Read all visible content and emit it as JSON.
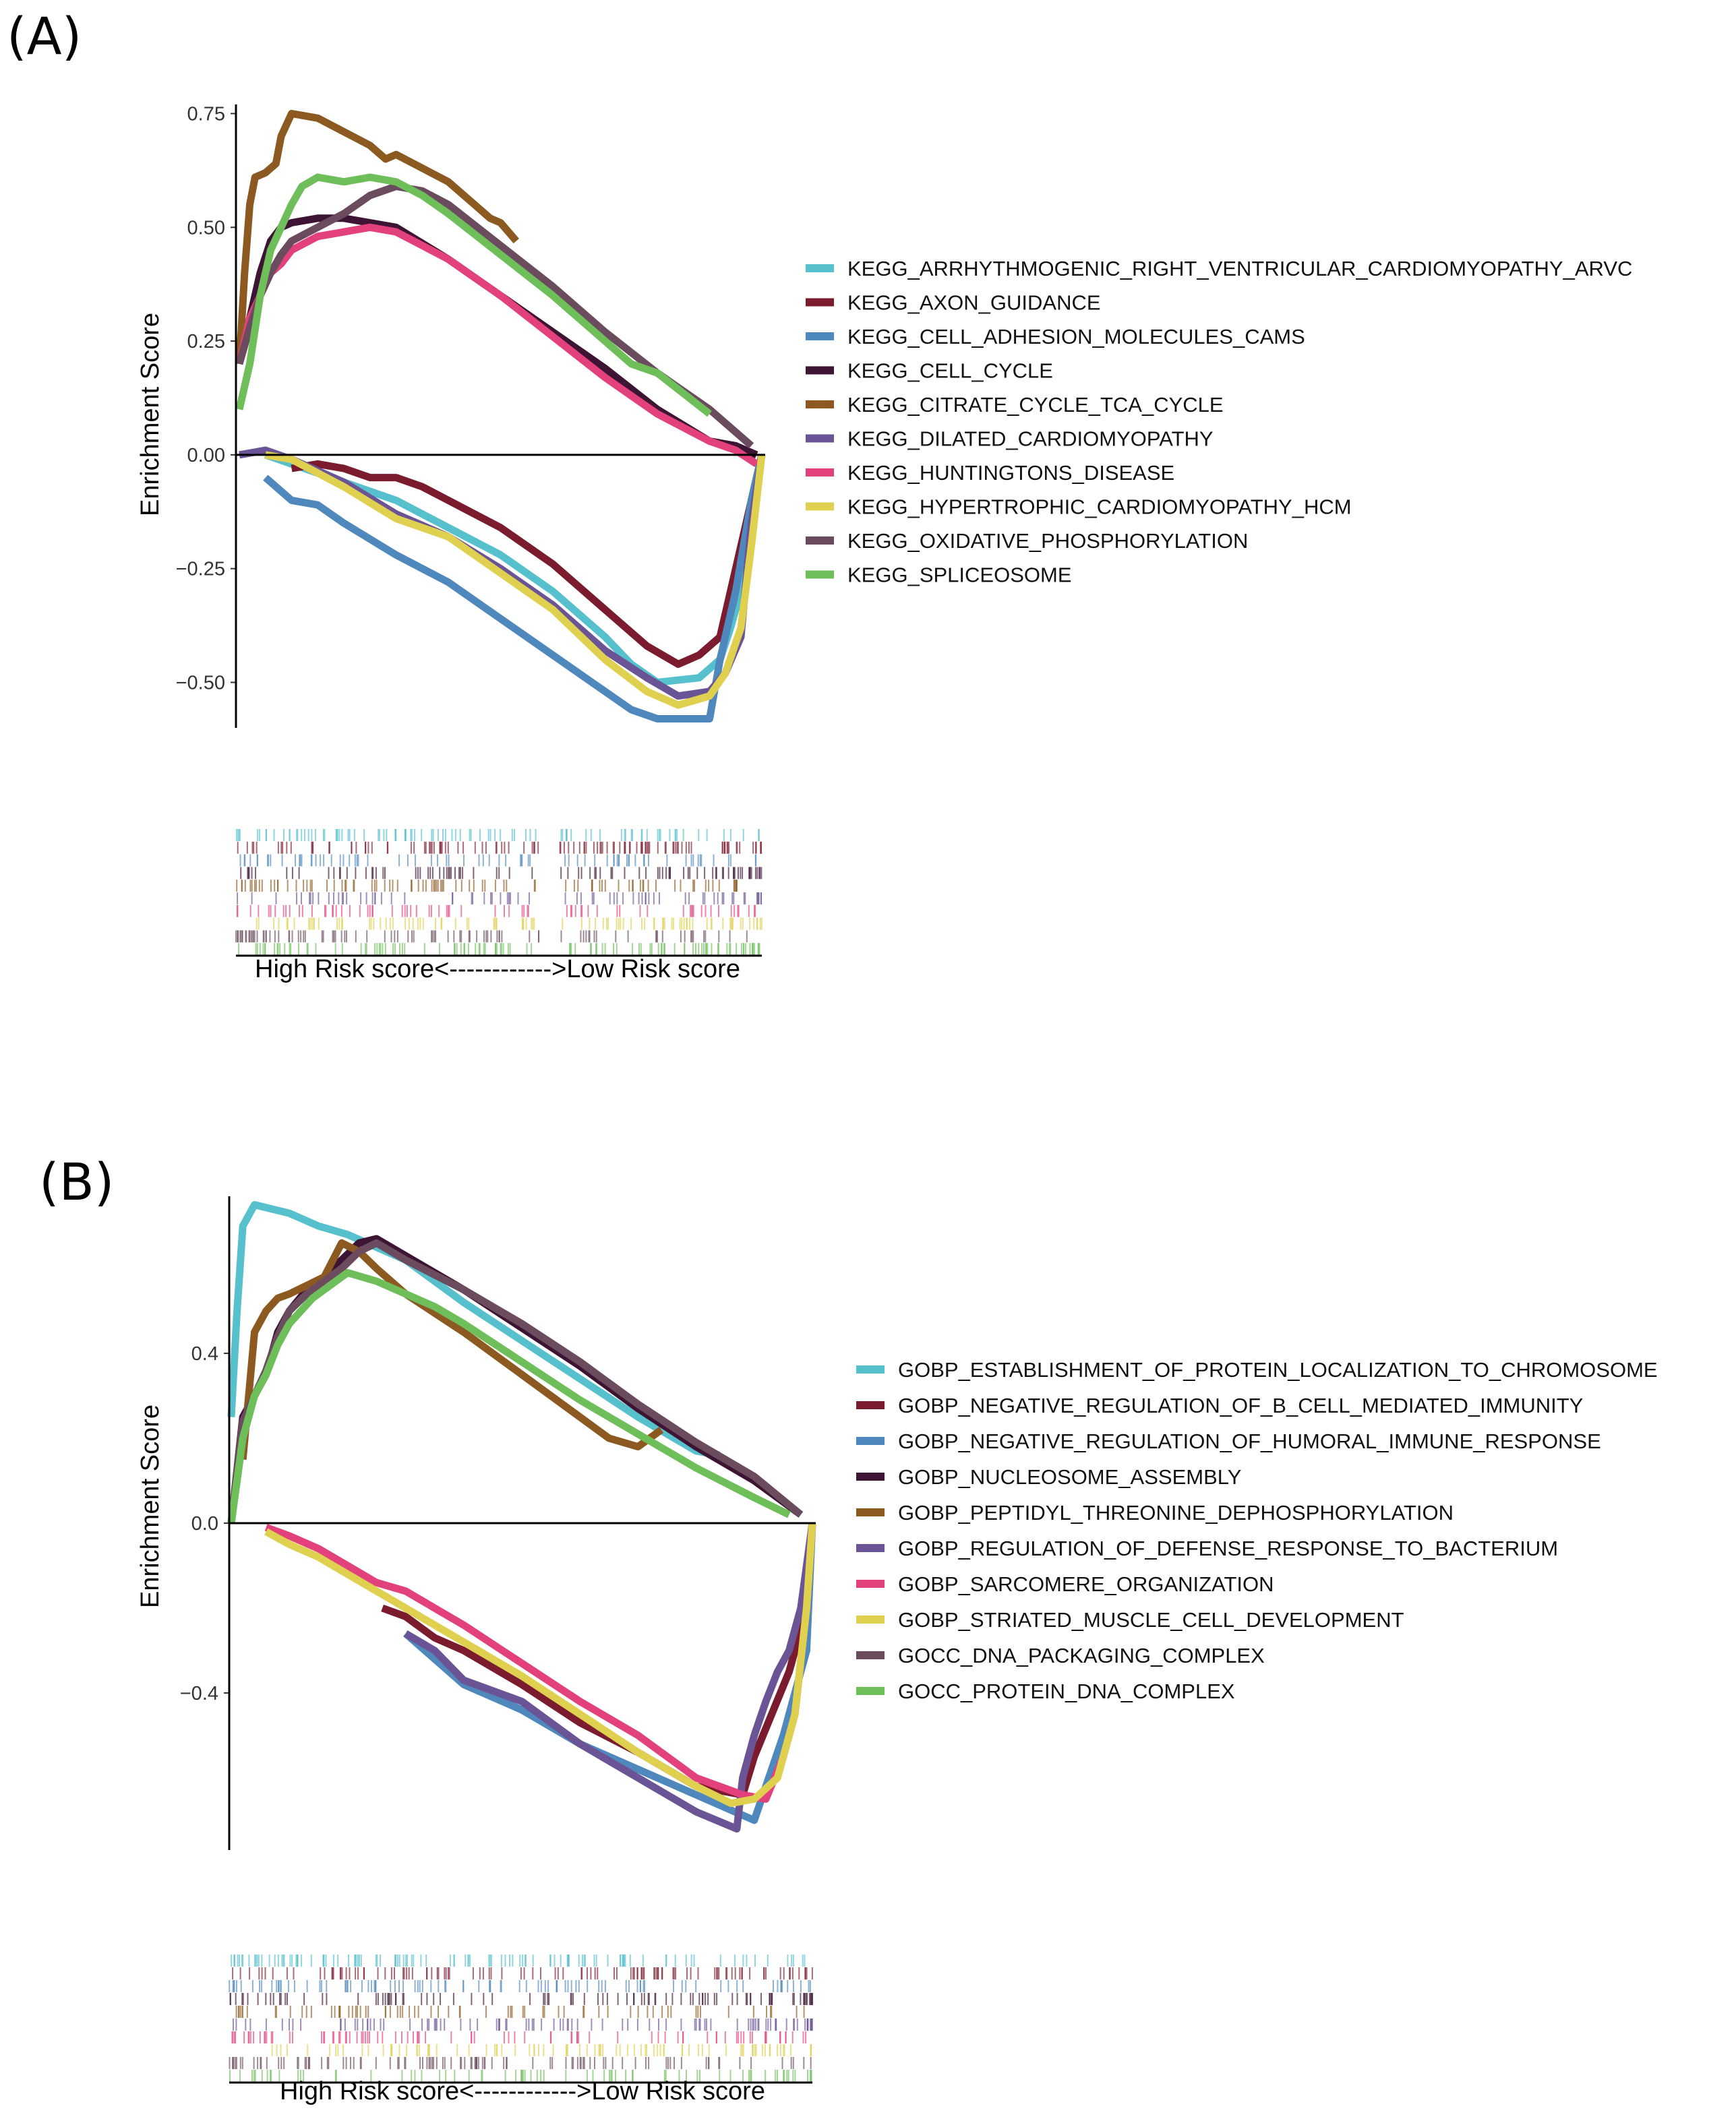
{
  "chart_data": [
    {
      "type": "line",
      "panel_label": "(A)",
      "ylabel": "Enrichment Score",
      "xlabel": "High Risk score<------------>Low Risk score",
      "x_range": [
        0,
        1
      ],
      "ylim": [
        -0.6,
        0.77
      ],
      "yticks": [
        -0.5,
        -0.25,
        0.0,
        0.25,
        0.5,
        0.75
      ],
      "ytick_labels": [
        "−0.50",
        "−0.25",
        "0.00",
        "0.25",
        "0.50",
        "0.75"
      ],
      "grid": false,
      "legend_position": "right",
      "series": [
        {
          "name": "KEGG_ARRHYTHMOGENIC_RIGHT_VENTRICULAR_CARDIOMYOPATHY_ARVC",
          "color": "#56C0CC",
          "x": [
            0.05,
            0.1,
            0.2,
            0.3,
            0.4,
            0.5,
            0.6,
            0.7,
            0.75,
            0.8,
            0.88,
            0.92,
            0.94,
            0.96,
            0.98,
            1.0
          ],
          "y": [
            0.0,
            -0.02,
            -0.06,
            -0.1,
            -0.16,
            -0.22,
            -0.3,
            -0.4,
            -0.46,
            -0.5,
            -0.49,
            -0.45,
            -0.38,
            -0.3,
            -0.1,
            0.0
          ]
        },
        {
          "name": "KEGG_AXON_GUIDANCE",
          "color": "#7B1B2E",
          "x": [
            0.1,
            0.15,
            0.2,
            0.25,
            0.3,
            0.35,
            0.4,
            0.5,
            0.6,
            0.7,
            0.78,
            0.84,
            0.88,
            0.92,
            0.95,
            0.97,
            1.0
          ],
          "y": [
            -0.03,
            -0.02,
            -0.03,
            -0.05,
            -0.05,
            -0.07,
            -0.1,
            -0.16,
            -0.24,
            -0.34,
            -0.42,
            -0.46,
            -0.44,
            -0.4,
            -0.25,
            -0.15,
            0.0
          ]
        },
        {
          "name": "KEGG_CELL_ADHESION_MOLECULES_CAMS",
          "color": "#4E88BD",
          "x": [
            0.05,
            0.1,
            0.15,
            0.2,
            0.3,
            0.4,
            0.5,
            0.6,
            0.7,
            0.75,
            0.8,
            0.86,
            0.9,
            0.92,
            0.95,
            0.98,
            1.0
          ],
          "y": [
            -0.05,
            -0.1,
            -0.11,
            -0.15,
            -0.22,
            -0.28,
            -0.36,
            -0.44,
            -0.52,
            -0.56,
            -0.58,
            -0.58,
            -0.58,
            -0.45,
            -0.3,
            -0.1,
            0.0
          ]
        },
        {
          "name": "KEGG_CELL_CYCLE",
          "color": "#3D1433",
          "x": [
            0.0,
            0.02,
            0.04,
            0.06,
            0.08,
            0.1,
            0.15,
            0.2,
            0.3,
            0.4,
            0.5,
            0.6,
            0.7,
            0.8,
            0.9,
            0.95,
            0.99
          ],
          "y": [
            0.2,
            0.3,
            0.4,
            0.47,
            0.5,
            0.51,
            0.52,
            0.52,
            0.5,
            0.43,
            0.35,
            0.27,
            0.19,
            0.1,
            0.03,
            0.02,
            0.0
          ]
        },
        {
          "name": "KEGG_CITRATE_CYCLE_TCA_CYCLE",
          "color": "#8C5A21",
          "x": [
            0.0,
            0.01,
            0.02,
            0.03,
            0.05,
            0.07,
            0.08,
            0.1,
            0.15,
            0.2,
            0.25,
            0.28,
            0.3,
            0.35,
            0.4,
            0.45,
            0.48,
            0.5,
            0.53
          ],
          "y": [
            0.2,
            0.4,
            0.55,
            0.61,
            0.62,
            0.64,
            0.7,
            0.75,
            0.74,
            0.71,
            0.68,
            0.65,
            0.66,
            0.63,
            0.6,
            0.55,
            0.52,
            0.51,
            0.47
          ]
        },
        {
          "name": "KEGG_DILATED_CARDIOMYOPATHY",
          "color": "#6B5496",
          "x": [
            0.0,
            0.05,
            0.1,
            0.2,
            0.3,
            0.4,
            0.5,
            0.6,
            0.7,
            0.78,
            0.84,
            0.9,
            0.93,
            0.96,
            0.98,
            1.0
          ],
          "y": [
            0.0,
            0.01,
            -0.01,
            -0.06,
            -0.13,
            -0.18,
            -0.25,
            -0.33,
            -0.43,
            -0.49,
            -0.53,
            -0.52,
            -0.48,
            -0.4,
            -0.15,
            0.0
          ]
        },
        {
          "name": "KEGG_HUNTINGTONS_DISEASE",
          "color": "#E2417C",
          "x": [
            0.0,
            0.02,
            0.04,
            0.06,
            0.08,
            0.1,
            0.15,
            0.2,
            0.25,
            0.3,
            0.35,
            0.4,
            0.5,
            0.6,
            0.7,
            0.8,
            0.9,
            0.95,
            0.99
          ],
          "y": [
            0.2,
            0.3,
            0.35,
            0.4,
            0.42,
            0.45,
            0.48,
            0.49,
            0.5,
            0.49,
            0.46,
            0.43,
            0.35,
            0.26,
            0.17,
            0.09,
            0.03,
            0.01,
            -0.02
          ]
        },
        {
          "name": "KEGG_HYPERTROPHIC_CARDIOMYOPATHY_HCM",
          "color": "#DFD050",
          "x": [
            0.05,
            0.1,
            0.15,
            0.2,
            0.3,
            0.4,
            0.5,
            0.6,
            0.7,
            0.78,
            0.84,
            0.9,
            0.93,
            0.96,
            0.98,
            1.0
          ],
          "y": [
            0.0,
            -0.01,
            -0.04,
            -0.07,
            -0.14,
            -0.18,
            -0.26,
            -0.34,
            -0.45,
            -0.52,
            -0.55,
            -0.53,
            -0.48,
            -0.38,
            -0.2,
            0.0
          ]
        },
        {
          "name": "KEGG_OXIDATIVE_PHOSPHORYLATION",
          "color": "#6A4C5E",
          "x": [
            0.0,
            0.02,
            0.04,
            0.06,
            0.08,
            0.1,
            0.15,
            0.2,
            0.25,
            0.3,
            0.35,
            0.4,
            0.5,
            0.6,
            0.7,
            0.8,
            0.9,
            0.98
          ],
          "y": [
            0.2,
            0.28,
            0.35,
            0.4,
            0.44,
            0.47,
            0.5,
            0.53,
            0.57,
            0.59,
            0.58,
            0.55,
            0.46,
            0.37,
            0.27,
            0.18,
            0.1,
            0.02
          ]
        },
        {
          "name": "KEGG_SPLICEOSOME",
          "color": "#6EBE5A",
          "x": [
            0.0,
            0.02,
            0.04,
            0.06,
            0.08,
            0.1,
            0.12,
            0.15,
            0.2,
            0.25,
            0.3,
            0.35,
            0.4,
            0.5,
            0.6,
            0.7,
            0.75,
            0.8,
            0.9
          ],
          "y": [
            0.1,
            0.2,
            0.35,
            0.45,
            0.5,
            0.55,
            0.59,
            0.61,
            0.6,
            0.61,
            0.6,
            0.57,
            0.53,
            0.44,
            0.35,
            0.25,
            0.2,
            0.18,
            0.09
          ]
        }
      ]
    },
    {
      "type": "line",
      "panel_label": "(B)",
      "ylabel": "Enrichment Score",
      "xlabel": "High Risk score<------------>Low Risk score",
      "x_range": [
        0,
        1
      ],
      "ylim": [
        -0.77,
        0.77
      ],
      "yticks": [
        -0.4,
        0.0,
        0.4
      ],
      "ytick_labels": [
        "−0.4",
        "0.0",
        "0.4"
      ],
      "grid": false,
      "legend_position": "right",
      "series": [
        {
          "name": "GOBP_ESTABLISHMENT_OF_PROTEIN_LOCALIZATION_TO_CHROMOSOME",
          "color": "#56C0CC",
          "x": [
            0.0,
            0.01,
            0.02,
            0.04,
            0.1,
            0.15,
            0.2,
            0.3,
            0.4,
            0.5,
            0.6,
            0.7,
            0.8,
            0.84
          ],
          "y": [
            0.25,
            0.5,
            0.7,
            0.75,
            0.73,
            0.7,
            0.68,
            0.62,
            0.52,
            0.43,
            0.34,
            0.25,
            0.17,
            0.16
          ]
        },
        {
          "name": "GOBP_NEGATIVE_REGULATION_OF_B_CELL_MEDIATED_IMMUNITY",
          "color": "#7B1B2E",
          "x": [
            0.26,
            0.3,
            0.35,
            0.4,
            0.5,
            0.6,
            0.7,
            0.8,
            0.88,
            0.9,
            0.93,
            0.96,
            0.98,
            1.0
          ],
          "y": [
            -0.2,
            -0.22,
            -0.27,
            -0.3,
            -0.38,
            -0.47,
            -0.54,
            -0.62,
            -0.64,
            -0.55,
            -0.45,
            -0.35,
            -0.25,
            0.0
          ]
        },
        {
          "name": "GOBP_NEGATIVE_REGULATION_OF_HUMORAL_IMMUNE_RESPONSE",
          "color": "#4E88BD",
          "x": [
            0.3,
            0.4,
            0.5,
            0.6,
            0.7,
            0.8,
            0.85,
            0.9,
            0.92,
            0.95,
            0.97,
            0.99,
            1.0
          ],
          "y": [
            -0.26,
            -0.38,
            -0.44,
            -0.52,
            -0.58,
            -0.64,
            -0.67,
            -0.7,
            -0.62,
            -0.5,
            -0.4,
            -0.3,
            0.0
          ]
        },
        {
          "name": "GOBP_NUCLEOSOME_ASSEMBLY",
          "color": "#3D1433",
          "x": [
            0.0,
            0.02,
            0.04,
            0.06,
            0.08,
            0.1,
            0.13,
            0.16,
            0.19,
            0.22,
            0.25,
            0.3,
            0.4,
            0.5,
            0.6,
            0.7,
            0.8,
            0.9,
            0.98
          ],
          "y": [
            0.0,
            0.25,
            0.3,
            0.35,
            0.45,
            0.5,
            0.55,
            0.58,
            0.62,
            0.66,
            0.67,
            0.63,
            0.55,
            0.46,
            0.37,
            0.27,
            0.18,
            0.1,
            0.02
          ]
        },
        {
          "name": "GOBP_PEPTIDYL_THREONINE_DEPHOSPHORYLATION",
          "color": "#8C5A21",
          "x": [
            0.02,
            0.03,
            0.04,
            0.06,
            0.08,
            0.1,
            0.13,
            0.16,
            0.19,
            0.22,
            0.25,
            0.3,
            0.4,
            0.5,
            0.6,
            0.65,
            0.7,
            0.73,
            0.74
          ],
          "y": [
            0.15,
            0.3,
            0.45,
            0.5,
            0.53,
            0.54,
            0.56,
            0.58,
            0.66,
            0.64,
            0.6,
            0.54,
            0.45,
            0.35,
            0.25,
            0.2,
            0.18,
            0.21,
            0.22
          ]
        },
        {
          "name": "GOBP_REGULATION_OF_DEFENSE_RESPONSE_TO_BACTERIUM",
          "color": "#6B5496",
          "x": [
            0.3,
            0.35,
            0.4,
            0.5,
            0.6,
            0.7,
            0.8,
            0.87,
            0.88,
            0.9,
            0.92,
            0.94,
            0.96,
            0.98,
            1.0
          ],
          "y": [
            -0.26,
            -0.3,
            -0.37,
            -0.42,
            -0.52,
            -0.6,
            -0.68,
            -0.72,
            -0.6,
            -0.5,
            -0.42,
            -0.35,
            -0.3,
            -0.2,
            0.0
          ]
        },
        {
          "name": "GOBP_SARCOMERE_ORGANIZATION",
          "color": "#E2417C",
          "x": [
            0.06,
            0.1,
            0.15,
            0.2,
            0.25,
            0.3,
            0.4,
            0.5,
            0.6,
            0.7,
            0.8,
            0.88,
            0.92,
            0.95,
            0.97,
            0.99,
            1.0
          ],
          "y": [
            -0.01,
            -0.03,
            -0.06,
            -0.1,
            -0.14,
            -0.16,
            -0.24,
            -0.33,
            -0.42,
            -0.5,
            -0.6,
            -0.64,
            -0.65,
            -0.55,
            -0.45,
            -0.2,
            0.0
          ]
        },
        {
          "name": "GOBP_STRIATED_MUSCLE_CELL_DEVELOPMENT",
          "color": "#DFD050",
          "x": [
            0.06,
            0.1,
            0.15,
            0.2,
            0.25,
            0.3,
            0.4,
            0.5,
            0.6,
            0.7,
            0.8,
            0.86,
            0.9,
            0.94,
            0.97,
            0.99,
            1.0
          ],
          "y": [
            -0.02,
            -0.05,
            -0.08,
            -0.12,
            -0.16,
            -0.2,
            -0.28,
            -0.36,
            -0.45,
            -0.54,
            -0.62,
            -0.66,
            -0.65,
            -0.6,
            -0.45,
            -0.2,
            0.0
          ]
        },
        {
          "name": "GOCC_DNA_PACKAGING_COMPLEX",
          "color": "#6A4C5E",
          "x": [
            0.0,
            0.02,
            0.04,
            0.06,
            0.08,
            0.1,
            0.13,
            0.16,
            0.19,
            0.22,
            0.25,
            0.3,
            0.4,
            0.5,
            0.6,
            0.7,
            0.8,
            0.9,
            0.98
          ],
          "y": [
            0.0,
            0.24,
            0.3,
            0.36,
            0.44,
            0.5,
            0.54,
            0.57,
            0.6,
            0.64,
            0.66,
            0.62,
            0.55,
            0.47,
            0.38,
            0.28,
            0.19,
            0.11,
            0.02
          ]
        },
        {
          "name": "GOCC_PROTEIN_DNA_COMPLEX",
          "color": "#6EBE5A",
          "x": [
            0.0,
            0.02,
            0.04,
            0.06,
            0.08,
            0.1,
            0.12,
            0.14,
            0.16,
            0.18,
            0.2,
            0.25,
            0.3,
            0.35,
            0.4,
            0.5,
            0.6,
            0.7,
            0.8,
            0.9,
            0.96
          ],
          "y": [
            0.0,
            0.2,
            0.3,
            0.35,
            0.42,
            0.47,
            0.5,
            0.53,
            0.55,
            0.57,
            0.59,
            0.57,
            0.54,
            0.51,
            0.47,
            0.38,
            0.29,
            0.21,
            0.13,
            0.06,
            0.02
          ]
        }
      ]
    }
  ]
}
